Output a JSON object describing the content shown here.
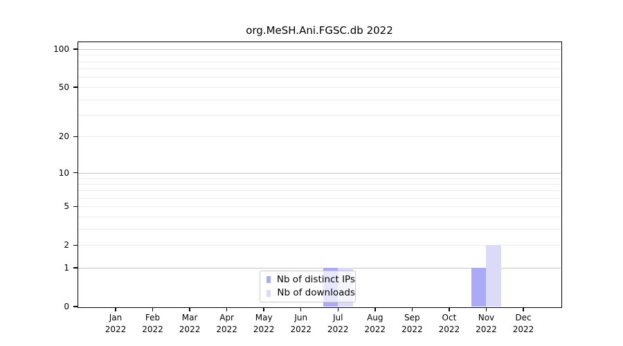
{
  "chart_data": {
    "type": "bar",
    "title": "org.MeSH.Ani.FGSC.db 2022",
    "categories": [
      "Jan 2022",
      "Feb 2022",
      "Mar 2022",
      "Apr 2022",
      "May 2022",
      "Jun 2022",
      "Jul 2022",
      "Aug 2022",
      "Sep 2022",
      "Oct 2022",
      "Nov 2022",
      "Dec 2022"
    ],
    "series": [
      {
        "name": "Nb of distinct IPs",
        "color": "#abaaf6",
        "values": [
          0,
          0,
          0,
          0,
          0,
          0,
          1,
          0,
          0,
          0,
          1,
          0
        ]
      },
      {
        "name": "Nb of downloads",
        "color": "#dbdaf8",
        "values": [
          0,
          0,
          0,
          0,
          0,
          0,
          1,
          0,
          0,
          0,
          2,
          0
        ]
      }
    ],
    "xlabel": "",
    "ylabel": "",
    "y_axis": {
      "scale": "log1p",
      "ticks": [
        0,
        1,
        2,
        5,
        10,
        20,
        50,
        100
      ],
      "major_gridlines": [
        1,
        10,
        100
      ],
      "minor_gridlines": [
        2,
        3,
        4,
        5,
        6,
        7,
        8,
        9,
        20,
        30,
        40,
        50,
        60,
        70,
        80,
        90
      ],
      "range": [
        0,
        120
      ]
    },
    "grid": true,
    "legend_position": "inside-bottom-center"
  },
  "colors": {
    "background": "#ffffff",
    "axis": "#000000",
    "grid_minor": "#ebebeb",
    "grid_major": "#c4c4c4"
  }
}
